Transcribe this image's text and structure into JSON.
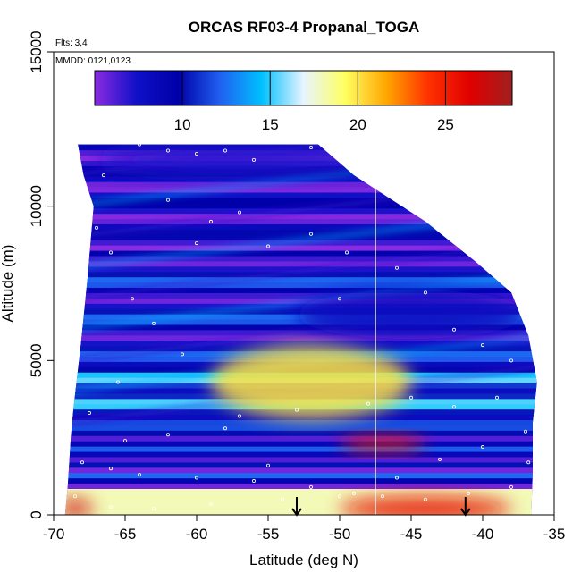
{
  "chart_data": {
    "type": "heatmap",
    "title": "ORCAS RF03-4 Propanal_TOGA",
    "annotations": {
      "flights": "Flts: 3,4",
      "dates": "MMDD: 0121,0123"
    },
    "xlabel": "Latitude (deg N)",
    "ylabel": "Altitude (m)",
    "xlim": [
      -70,
      -35
    ],
    "ylim": [
      0,
      15000
    ],
    "x_ticks": [
      -70,
      -65,
      -60,
      -55,
      -50,
      -45,
      -40,
      -35
    ],
    "x_tick_labels": [
      "-70",
      "-65",
      "-60",
      "-55",
      "-50",
      "-45",
      "-40",
      "-35"
    ],
    "y_ticks": [
      0,
      5000,
      10000,
      15000
    ],
    "y_tick_labels": [
      "0",
      "5000",
      "10000",
      "15000"
    ],
    "colorbar": {
      "range": [
        5,
        28.8
      ],
      "ticks": [
        10,
        15,
        20,
        25
      ],
      "tick_labels": [
        "10",
        "15",
        "20",
        "25"
      ],
      "colors": [
        "#8a2be2",
        "#1010c8",
        "#0000a8",
        "#2060f0",
        "#00c0ff",
        "#e8f4ff",
        "#ffff60",
        "#ffa500",
        "#ff3000",
        "#e00000",
        "#a02020"
      ]
    },
    "curtain": {
      "top_profile": [
        [
          -68.3,
          12000
        ],
        [
          -51.5,
          12000
        ],
        [
          -49.0,
          11000
        ],
        [
          -44.0,
          9500
        ],
        [
          -40.5,
          8200
        ],
        [
          -38.0,
          7200
        ],
        [
          -36.8,
          5800
        ],
        [
          -36.2,
          4300
        ]
      ],
      "left_profile": [
        [
          -69.2,
          0
        ],
        [
          -69.0,
          1000
        ],
        [
          -68.8,
          2500
        ],
        [
          -68.6,
          3500
        ],
        [
          -68.1,
          5500
        ],
        [
          -67.6,
          7800
        ],
        [
          -67.2,
          10000
        ],
        [
          -67.9,
          11000
        ],
        [
          -68.3,
          12000
        ]
      ],
      "right_profile": [
        [
          -36.2,
          4300
        ],
        [
          -36.5,
          3000
        ],
        [
          -36.5,
          1500
        ],
        [
          -36.6,
          0
        ]
      ]
    },
    "features": [
      {
        "kind": "plume",
        "x": -52,
        "y": 4300,
        "rx": 7,
        "ry": 1200,
        "value": 20
      },
      {
        "kind": "surface_high",
        "x": -44,
        "y": 200,
        "rx": 6,
        "ry": 400,
        "value": 26
      },
      {
        "kind": "surface_high",
        "x": -68.5,
        "y": 200,
        "rx": 1.2,
        "ry": 300,
        "value": 27
      },
      {
        "kind": "layer_high",
        "x": -47,
        "y": 2300,
        "rx": 3,
        "ry": 250,
        "value": 25
      },
      {
        "kind": "upper_low",
        "x": -57,
        "y": 11500,
        "rx": 10,
        "ry": 500,
        "value": 7
      },
      {
        "kind": "mid_low",
        "x": -45,
        "y": 6500,
        "rx": 8,
        "ry": 800,
        "value": 8
      }
    ],
    "vertical_line_x": -47.5,
    "arrows_x": [
      -53.0,
      -41.2
    ],
    "sample_points": [
      [
        -64,
        12000
      ],
      [
        -62,
        11800
      ],
      [
        -60,
        11700
      ],
      [
        -58,
        11800
      ],
      [
        -56,
        11500
      ],
      [
        -52,
        11900
      ],
      [
        -66.5,
        11000
      ],
      [
        -62,
        10200
      ],
      [
        -59,
        9500
      ],
      [
        -57,
        9800
      ],
      [
        -60,
        8800
      ],
      [
        -55,
        8700
      ],
      [
        -52,
        9100
      ],
      [
        -49.5,
        8500
      ],
      [
        -50,
        7000
      ],
      [
        -46,
        8000
      ],
      [
        -44,
        7200
      ],
      [
        -42,
        6000
      ],
      [
        -40,
        5500
      ],
      [
        -38,
        5000
      ],
      [
        -39,
        3800
      ],
      [
        -42,
        3500
      ],
      [
        -45,
        3800
      ],
      [
        -48,
        3600
      ],
      [
        -53,
        3400
      ],
      [
        -58,
        2800
      ],
      [
        -62,
        2600
      ],
      [
        -65,
        2400
      ],
      [
        -66,
        1500
      ],
      [
        -64,
        1300
      ],
      [
        -60,
        1200
      ],
      [
        -56,
        1100
      ],
      [
        -52,
        900
      ],
      [
        -49,
        700
      ],
      [
        -47,
        600
      ],
      [
        -44,
        500
      ],
      [
        -41,
        700
      ],
      [
        -38,
        900
      ],
      [
        -36.8,
        1700
      ],
      [
        -55,
        1600
      ],
      [
        -57,
        3200
      ],
      [
        -61,
        5200
      ],
      [
        -63,
        6200
      ],
      [
        -64.5,
        7000
      ],
      [
        -66,
        8500
      ],
      [
        -67,
        9300
      ],
      [
        -65.5,
        4300
      ],
      [
        -67.5,
        3300
      ],
      [
        -68,
        1700
      ],
      [
        -68.5,
        600
      ],
      [
        -66,
        250
      ],
      [
        -63,
        200
      ],
      [
        -59,
        350
      ],
      [
        -54,
        500
      ],
      [
        -50,
        600
      ],
      [
        -46,
        1200
      ],
      [
        -43,
        1800
      ],
      [
        -40,
        2200
      ],
      [
        -37,
        2700
      ]
    ]
  }
}
